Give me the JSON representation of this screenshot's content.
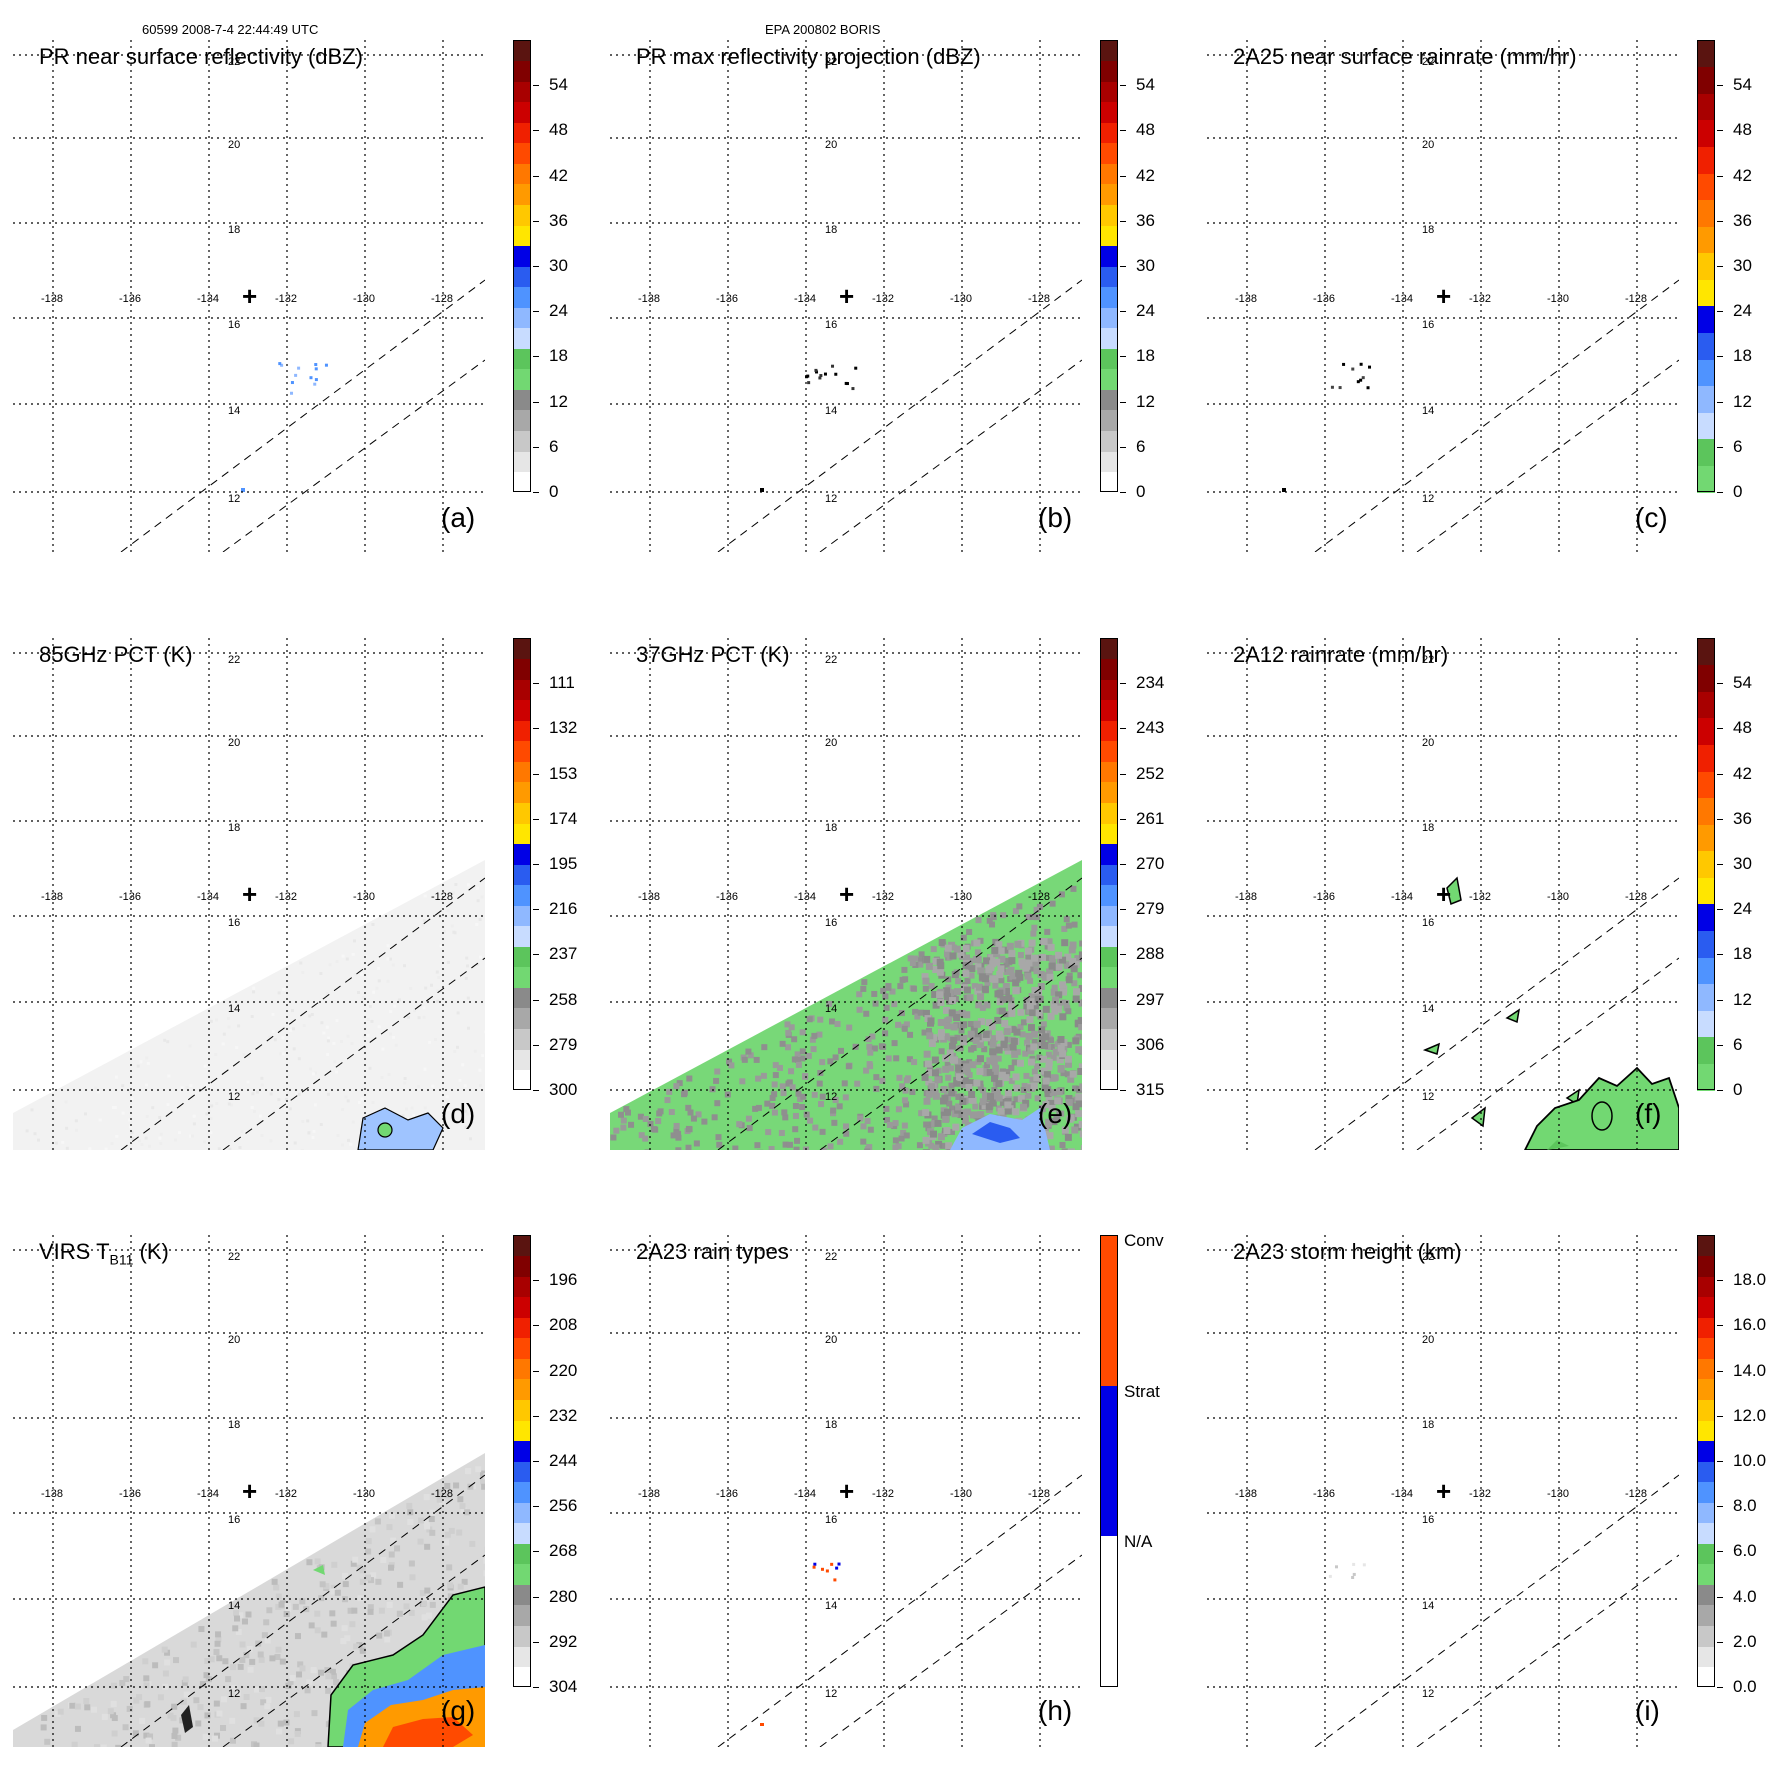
{
  "header": {
    "orbit_info": "60599 2008-7-4 22:44:49 UTC",
    "storm_info": "EPA 200802 BORIS"
  },
  "map": {
    "lon_labels": [
      "-138",
      "-136",
      "-134",
      "-132",
      "-130",
      "-128"
    ],
    "lat_labels": [
      "22",
      "20",
      "18",
      "16",
      "14",
      "12"
    ],
    "center_marker": "+"
  },
  "colors": {
    "reflectivity": [
      "#ffffff",
      "#e6e6e6",
      "#c8c8c8",
      "#a8a8a8",
      "#8a8a8a",
      "#72d872",
      "#5cc55c",
      "#c8dcff",
      "#8fb8ff",
      "#4f93ff",
      "#2a5cf0",
      "#0000e6",
      "#ffe600",
      "#ffc800",
      "#ff9a00",
      "#ff7800",
      "#ff4a00",
      "#f02000",
      "#cc0000",
      "#a80000",
      "#800000",
      "#5a1410"
    ],
    "rainrate": [
      "#72d872",
      "#5cc55c",
      "#c8dcff",
      "#8fb8ff",
      "#4f93ff",
      "#2a5cf0",
      "#0000e6",
      "#ffe600",
      "#ffc800",
      "#ff9a00",
      "#ff7800",
      "#ff4a00",
      "#f02000",
      "#cc0000",
      "#a80000",
      "#800000",
      "#5a1410"
    ],
    "raintype": [
      "#ffffff",
      "#0000e6",
      "#ff4a00"
    ],
    "contour": "#000000",
    "dash": "#000000"
  },
  "panels": [
    {
      "id": "a",
      "title": "PR near surface reflectivity (dBZ)",
      "label": "(a)",
      "cbar": "reflectivity",
      "ticks": [
        "0",
        "6",
        "12",
        "18",
        "24",
        "30",
        "36",
        "42",
        "48",
        "54"
      ]
    },
    {
      "id": "b",
      "title": "PR max reflectivity projection (dBZ)",
      "label": "(b)",
      "cbar": "reflectivity",
      "ticks": [
        "0",
        "6",
        "12",
        "18",
        "24",
        "30",
        "36",
        "42",
        "48",
        "54"
      ]
    },
    {
      "id": "c",
      "title": "2A25 near surface rainrate (mm/hr)",
      "label": "(c)",
      "cbar": "rainrate",
      "ticks": [
        "0",
        "6",
        "12",
        "18",
        "24",
        "30",
        "36",
        "42",
        "48",
        "54"
      ]
    },
    {
      "id": "d",
      "title": "85GHz PCT (K)",
      "label": "(d)",
      "cbar": "pct",
      "ticks": [
        "300",
        "279",
        "258",
        "237",
        "216",
        "195",
        "174",
        "153",
        "132",
        "111"
      ]
    },
    {
      "id": "e",
      "title": "37GHz PCT (K)",
      "label": "(e)",
      "cbar": "pct",
      "ticks": [
        "315",
        "306",
        "297",
        "288",
        "279",
        "270",
        "261",
        "252",
        "243",
        "234"
      ]
    },
    {
      "id": "f",
      "title": "2A12 rainrate (mm/hr)",
      "label": "(f)",
      "cbar": "rainrate",
      "ticks": [
        "0",
        "6",
        "12",
        "18",
        "24",
        "30",
        "36",
        "42",
        "48",
        "54"
      ]
    },
    {
      "id": "g",
      "title_main": "VIRS T",
      "title_sub": "B11",
      "title_tail": " (K)",
      "label": "(g)",
      "cbar": "pct",
      "ticks": [
        "304",
        "292",
        "280",
        "268",
        "256",
        "244",
        "232",
        "220",
        "208",
        "196"
      ]
    },
    {
      "id": "h",
      "title": "2A23 rain types",
      "label": "(h)",
      "cbar": "raintype",
      "ticks": [
        "N/A",
        "Strat",
        "Conv"
      ]
    },
    {
      "id": "i",
      "title": "2A23 storm height (km)",
      "label": "(i)",
      "cbar": "reflectivity",
      "ticks": [
        "0.0",
        "2.0",
        "4.0",
        "6.0",
        "8.0",
        "10.0",
        "12.0",
        "14.0",
        "16.0",
        "18.0"
      ]
    }
  ]
}
